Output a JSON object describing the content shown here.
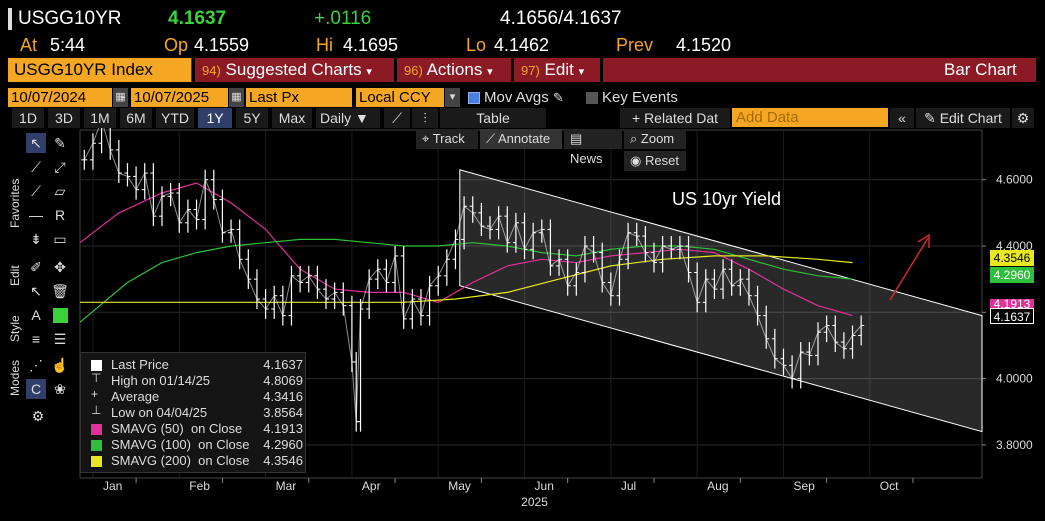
{
  "header": {
    "ticker": "USGG10YR",
    "last": "4.1637",
    "change": "+.0116",
    "bid_ask": "4.1656/4.1637",
    "at_label": "At",
    "at_time": "5:44",
    "op_label": "Op",
    "op": "4.1559",
    "hi_label": "Hi",
    "hi": "4.1695",
    "lo_label": "Lo",
    "lo": "4.1462",
    "prev_label": "Prev",
    "prev": "4.1520"
  },
  "toolbar": {
    "security": "USGG10YR Index",
    "suggested_num": "94)",
    "suggested": "Suggested Charts",
    "actions_num": "96)",
    "actions": "Actions",
    "edit_num": "97)",
    "edit": "Edit",
    "chart_type": "Bar Chart"
  },
  "controls": {
    "start_date": "10/07/2024",
    "end_date": "10/07/2025",
    "field": "Last Px",
    "currency": "Local CCY",
    "mov_avgs": "Mov Avgs",
    "key_events": "Key Events",
    "periods": [
      "1D",
      "3D",
      "1M",
      "6M",
      "YTD",
      "1Y",
      "5Y",
      "Max"
    ],
    "selected_period": "1Y",
    "interval": "Daily",
    "table": "Table",
    "related": "+ Related Dat",
    "add_data_placeholder": "Add Data",
    "edit_chart": "Edit Chart"
  },
  "overlay_tools": {
    "track": "Track",
    "annotate": "Annotate",
    "news": "News",
    "zoom": "Zoom",
    "reset": "Reset"
  },
  "sidebar": {
    "favorites": "Favorites",
    "edit": "Edit",
    "style": "Style",
    "modes": "Modes"
  },
  "legend": {
    "last_price_label": "Last Price",
    "last_price": "4.1637",
    "high_label": "High on 01/14/25",
    "high": "4.8069",
    "average_label": "Average",
    "average": "4.3416",
    "low_label": "Low on 04/04/25",
    "low": "3.8564",
    "sma50_label": "SMAVG (50)  on Close",
    "sma50": "4.1913",
    "sma100_label": "SMAVG (100)  on Close",
    "sma100": "4.2960",
    "sma200_label": "SMAVG (200)  on Close",
    "sma200": "4.3546"
  },
  "colors": {
    "amber": "#f5a623",
    "price": "#ffffff",
    "sma50": "#e0309a",
    "sma100": "#2fbf3a",
    "sma200": "#e8e820",
    "annotation": "#d42828"
  },
  "chart_data": {
    "type": "line",
    "title": "US 10yr Yield",
    "xlabel": "2025",
    "ylabel": "",
    "ylim": [
      3.7,
      4.75
    ],
    "yticks": [
      3.8,
      4.0,
      4.2,
      4.4,
      4.6
    ],
    "ytick_labels": [
      "3.8000",
      "4.0000",
      "4.2000",
      "4.4000",
      "4.6000"
    ],
    "xtick_labels": [
      "Jan",
      "Feb",
      "Mar",
      "Apr",
      "May",
      "Jun",
      "Jul",
      "Aug",
      "Sep",
      "Oct"
    ],
    "xtick_months": [
      0,
      1,
      2,
      3,
      4,
      5,
      6,
      7,
      8,
      9
    ],
    "x_start_month": -0.15,
    "x_end_month": 10.3,
    "series": [
      {
        "name": "Last Price",
        "x": [
          -0.1,
          0.0,
          0.1,
          0.2,
          0.3,
          0.4,
          0.5,
          0.6,
          0.7,
          0.8,
          0.9,
          1.0,
          1.1,
          1.2,
          1.3,
          1.4,
          1.5,
          1.6,
          1.7,
          1.8,
          1.9,
          2.0,
          2.1,
          2.2,
          2.3,
          2.4,
          2.5,
          2.6,
          2.7,
          2.8,
          2.9,
          3.0,
          3.05,
          3.1,
          3.2,
          3.3,
          3.4,
          3.5,
          3.6,
          3.7,
          3.8,
          3.9,
          4.0,
          4.1,
          4.2,
          4.3,
          4.4,
          4.5,
          4.6,
          4.7,
          4.8,
          4.9,
          5.0,
          5.1,
          5.2,
          5.3,
          5.4,
          5.5,
          5.6,
          5.7,
          5.8,
          5.9,
          6.0,
          6.1,
          6.2,
          6.3,
          6.4,
          6.5,
          6.6,
          6.7,
          6.8,
          6.9,
          7.0,
          7.1,
          7.2,
          7.3,
          7.4,
          7.5,
          7.6,
          7.7,
          7.8,
          7.9,
          8.0,
          8.1,
          8.2,
          8.3,
          8.4,
          8.5,
          8.6,
          8.7,
          8.8,
          8.9
        ],
        "values": [
          4.66,
          4.71,
          4.78,
          4.69,
          4.62,
          4.61,
          4.57,
          4.62,
          4.49,
          4.55,
          4.56,
          4.47,
          4.51,
          4.48,
          4.6,
          4.54,
          4.44,
          4.45,
          4.36,
          4.3,
          4.24,
          4.21,
          4.25,
          4.19,
          4.31,
          4.29,
          4.31,
          4.27,
          4.24,
          4.26,
          4.22,
          4.05,
          3.87,
          4.21,
          4.3,
          4.33,
          4.29,
          4.37,
          4.18,
          4.24,
          4.19,
          4.28,
          4.31,
          4.36,
          4.42,
          4.52,
          4.5,
          4.46,
          4.45,
          4.49,
          4.41,
          4.47,
          4.39,
          4.44,
          4.45,
          4.34,
          4.36,
          4.28,
          4.32,
          4.4,
          4.38,
          4.29,
          4.25,
          4.36,
          4.44,
          4.43,
          4.38,
          4.35,
          4.4,
          4.39,
          4.4,
          4.32,
          4.23,
          4.3,
          4.27,
          4.33,
          4.28,
          4.3,
          4.25,
          4.19,
          4.12,
          4.06,
          4.04,
          4.0,
          4.08,
          4.07,
          4.14,
          4.16,
          4.11,
          4.09,
          4.13,
          4.16
        ]
      },
      {
        "name": "SMAVG (50)",
        "x": [
          -0.15,
          0.3,
          0.8,
          1.2,
          1.6,
          2.0,
          2.4,
          2.8,
          3.2,
          3.6,
          4.0,
          4.4,
          4.8,
          5.2,
          5.6,
          6.0,
          6.4,
          6.8,
          7.2,
          7.6,
          8.0,
          8.4,
          8.8
        ],
        "values": [
          4.41,
          4.5,
          4.56,
          4.59,
          4.53,
          4.45,
          4.33,
          4.27,
          4.26,
          4.26,
          4.23,
          4.29,
          4.34,
          4.36,
          4.35,
          4.37,
          4.38,
          4.39,
          4.38,
          4.33,
          4.27,
          4.22,
          4.19
        ]
      },
      {
        "name": "SMAVG (100)",
        "x": [
          -0.15,
          0.4,
          0.8,
          1.2,
          1.6,
          2.0,
          2.4,
          2.8,
          3.2,
          3.6,
          4.0,
          4.4,
          4.8,
          5.2,
          5.6,
          6.0,
          6.4,
          6.8,
          7.2,
          7.6,
          8.0,
          8.4,
          8.8
        ],
        "values": [
          4.17,
          4.29,
          4.35,
          4.38,
          4.4,
          4.41,
          4.42,
          4.42,
          4.41,
          4.4,
          4.4,
          4.41,
          4.4,
          4.38,
          4.37,
          4.39,
          4.4,
          4.4,
          4.39,
          4.36,
          4.33,
          4.31,
          4.3
        ]
      },
      {
        "name": "SMAVG (200)",
        "x": [
          -0.15,
          0.6,
          1.2,
          1.8,
          2.4,
          3.0,
          3.6,
          4.2,
          4.8,
          5.4,
          6.0,
          6.6,
          7.2,
          7.8,
          8.4,
          8.8
        ],
        "values": [
          4.23,
          4.23,
          4.23,
          4.23,
          4.23,
          4.23,
          4.23,
          4.24,
          4.26,
          4.3,
          4.34,
          4.36,
          4.37,
          4.37,
          4.36,
          4.35
        ]
      }
    ],
    "channel": {
      "upper": [
        [
          4.25,
          4.63
        ],
        [
          10.3,
          4.19
        ]
      ],
      "lower": [
        [
          4.25,
          4.28
        ],
        [
          10.3,
          3.84
        ]
      ]
    },
    "annotations": [
      {
        "text": "US 10yr Yield"
      }
    ]
  }
}
